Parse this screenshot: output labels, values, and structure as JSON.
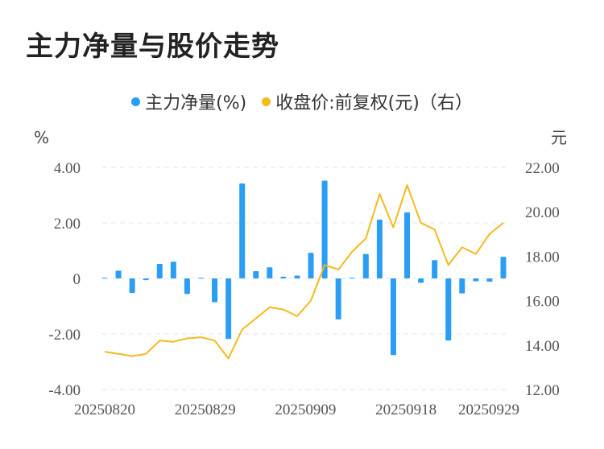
{
  "title": "主力净量与股价走势",
  "legend": {
    "bar_label": "主力净量(%)",
    "line_label": "收盘价:前复权(元)（右）"
  },
  "colors": {
    "bar": "#2a9df4",
    "line": "#f5b91c",
    "grid": "#e3e3e3"
  },
  "chart_data": {
    "type": "bar+line",
    "title": "主力净量与股价走势",
    "left_axis": {
      "unit": "%",
      "ticks": [
        "4.00",
        "2.00",
        "0",
        "-2.00",
        "-4.00"
      ],
      "range": [
        -4,
        4
      ]
    },
    "right_axis": {
      "unit": "元",
      "ticks": [
        "22.00",
        "20.00",
        "18.00",
        "16.00",
        "14.00",
        "12.00"
      ],
      "range": [
        12,
        22
      ]
    },
    "x_tick_labels": [
      "20250820",
      "20250829",
      "20250909",
      "20250918",
      "20250929"
    ],
    "x_tick_indices": [
      0,
      9,
      18,
      27,
      36
    ],
    "series": [
      {
        "name": "主力净量(%)",
        "kind": "bar",
        "axis": "left",
        "values": [
          0.02,
          0.28,
          -0.52,
          -0.06,
          0.52,
          0.6,
          -0.56,
          0.02,
          -0.86,
          -2.18,
          3.42,
          0.26,
          0.4,
          0.06,
          0.1,
          0.92,
          3.52,
          -1.48,
          0.02,
          0.88,
          2.12,
          -2.76,
          2.38,
          -0.16,
          0.66,
          -2.24,
          -0.54,
          -0.1,
          -0.12,
          0.78
        ]
      },
      {
        "name": "收盘价:前复权(元)（右）",
        "kind": "line",
        "axis": "right",
        "values": [
          13.7,
          13.6,
          13.5,
          13.6,
          14.2,
          14.15,
          14.3,
          14.35,
          14.2,
          13.4,
          14.7,
          15.2,
          15.7,
          15.6,
          15.3,
          16.0,
          17.6,
          17.4,
          18.2,
          18.8,
          20.8,
          19.3,
          21.2,
          19.5,
          19.2,
          17.6,
          18.4,
          18.1,
          19.0,
          19.5
        ]
      }
    ]
  }
}
